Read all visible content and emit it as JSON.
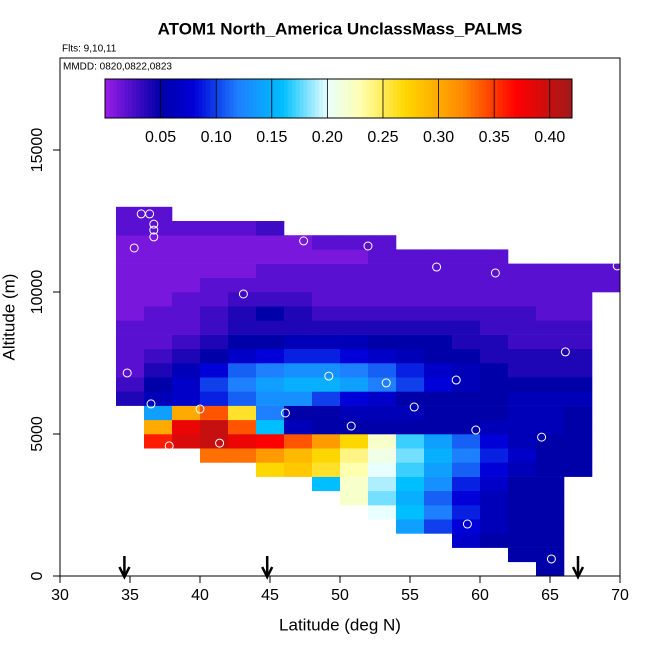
{
  "chart_data": {
    "type": "heatmap",
    "title": "ATOM1 North_America UnclassMass_PALMS",
    "subtitle": "Flts: 9,10,11",
    "annotation": "MMDD: 0820,0822,0823",
    "xlabel": "Latitude (deg N)",
    "ylabel": "Altitude (m)",
    "xlim": [
      30,
      70
    ],
    "ylim": [
      0,
      18240
    ],
    "xticks": [
      30,
      35,
      40,
      45,
      50,
      55,
      60,
      65,
      70
    ],
    "yticks": [
      0,
      5000,
      10000,
      15000
    ],
    "xbins": [
      34,
      36,
      38,
      40,
      42,
      44,
      46,
      48,
      50,
      52,
      54,
      56,
      58,
      60,
      62,
      64,
      66,
      68,
      70
    ],
    "ybins": [
      0,
      500,
      1000,
      1500,
      2000,
      2500,
      3000,
      3500,
      4000,
      4500,
      5000,
      5500,
      6000,
      6500,
      7000,
      7500,
      8000,
      8500,
      9000,
      9500,
      10000,
      10500,
      11000,
      11500,
      12000,
      12500,
      13000
    ],
    "values": [
      [
        null,
        null,
        null,
        null,
        null,
        null,
        null,
        null,
        null,
        null,
        null,
        null,
        null,
        null,
        null,
        0.05,
        null,
        null
      ],
      [
        null,
        null,
        null,
        null,
        null,
        null,
        null,
        null,
        null,
        null,
        null,
        null,
        null,
        null,
        0.05,
        0.05,
        null,
        null
      ],
      [
        null,
        null,
        null,
        null,
        null,
        null,
        null,
        null,
        null,
        null,
        null,
        null,
        0.07,
        0.05,
        0.05,
        0.05,
        null,
        null
      ],
      [
        null,
        null,
        null,
        null,
        null,
        null,
        null,
        null,
        null,
        null,
        0.14,
        0.1,
        0.08,
        0.06,
        0.05,
        0.05,
        null,
        null
      ],
      [
        null,
        null,
        null,
        null,
        null,
        null,
        null,
        null,
        null,
        0.2,
        0.16,
        0.12,
        0.09,
        0.06,
        0.05,
        0.05,
        null,
        null
      ],
      [
        null,
        null,
        null,
        null,
        null,
        null,
        null,
        null,
        0.22,
        0.18,
        0.15,
        0.11,
        0.08,
        0.06,
        0.05,
        0.05,
        null,
        null
      ],
      [
        null,
        null,
        null,
        null,
        null,
        null,
        null,
        0.16,
        0.22,
        0.19,
        0.16,
        0.13,
        0.09,
        0.07,
        0.05,
        0.05,
        null,
        null
      ],
      [
        null,
        null,
        null,
        null,
        null,
        0.27,
        0.28,
        0.26,
        0.23,
        0.2,
        0.17,
        0.14,
        0.11,
        0.08,
        0.06,
        0.05,
        0.05,
        null
      ],
      [
        null,
        null,
        null,
        0.33,
        0.33,
        0.31,
        0.29,
        0.27,
        0.24,
        0.21,
        0.18,
        0.15,
        0.12,
        0.09,
        0.07,
        0.05,
        0.05,
        null
      ],
      [
        null,
        0.36,
        0.39,
        0.4,
        0.38,
        0.37,
        0.34,
        0.31,
        0.27,
        0.22,
        0.17,
        0.14,
        0.11,
        0.08,
        0.06,
        0.05,
        0.05,
        null
      ],
      [
        null,
        0.3,
        0.38,
        0.4,
        0.34,
        0.16,
        0.06,
        0.05,
        0.05,
        0.05,
        0.05,
        0.05,
        0.05,
        0.06,
        0.06,
        0.06,
        0.05,
        null
      ],
      [
        null,
        0.14,
        0.3,
        0.34,
        0.26,
        0.12,
        0.05,
        0.05,
        0.06,
        0.06,
        0.06,
        0.05,
        0.05,
        0.05,
        0.06,
        0.06,
        0.05,
        null
      ],
      [
        0.04,
        0.06,
        0.07,
        0.09,
        0.11,
        0.13,
        0.13,
        0.1,
        0.08,
        0.07,
        0.05,
        0.05,
        0.05,
        0.05,
        0.06,
        0.06,
        0.06,
        null
      ],
      [
        0.03,
        0.05,
        0.07,
        0.1,
        0.12,
        0.14,
        0.15,
        0.15,
        0.14,
        0.12,
        0.1,
        0.08,
        0.06,
        0.05,
        0.05,
        0.05,
        0.05,
        null
      ],
      [
        0.02,
        0.04,
        0.06,
        0.08,
        0.11,
        0.12,
        0.13,
        0.13,
        0.12,
        0.11,
        0.09,
        0.07,
        0.06,
        0.05,
        0.04,
        0.04,
        0.04,
        null
      ],
      [
        0.02,
        0.03,
        0.04,
        0.05,
        0.07,
        0.08,
        0.09,
        0.09,
        0.08,
        0.07,
        0.06,
        0.05,
        0.05,
        0.04,
        0.04,
        0.04,
        0.04,
        null
      ],
      [
        0.02,
        0.02,
        0.03,
        0.04,
        0.05,
        0.05,
        0.06,
        0.06,
        0.06,
        0.05,
        0.05,
        0.05,
        0.04,
        0.04,
        0.03,
        0.03,
        0.03,
        null
      ],
      [
        0.02,
        0.02,
        0.02,
        0.03,
        0.04,
        0.04,
        0.04,
        0.04,
        0.04,
        0.04,
        0.04,
        0.04,
        0.04,
        0.03,
        0.03,
        0.03,
        0.03,
        null
      ],
      [
        0.01,
        0.02,
        0.02,
        0.03,
        0.04,
        0.05,
        0.04,
        0.03,
        0.03,
        0.03,
        0.03,
        0.03,
        0.03,
        0.03,
        0.03,
        0.02,
        0.02,
        null
      ],
      [
        0.01,
        0.01,
        0.02,
        0.02,
        0.03,
        0.03,
        0.03,
        0.02,
        0.02,
        0.02,
        0.02,
        0.02,
        0.02,
        0.02,
        0.02,
        0.02,
        0.02,
        null
      ],
      [
        0.01,
        0.01,
        0.01,
        0.02,
        0.02,
        0.02,
        0.02,
        0.02,
        0.02,
        0.02,
        0.02,
        0.02,
        0.02,
        0.02,
        0.02,
        0.02,
        0.02,
        0.02
      ],
      [
        0.01,
        0.01,
        0.01,
        0.01,
        0.01,
        0.02,
        0.02,
        0.02,
        0.02,
        0.02,
        0.02,
        0.02,
        0.02,
        0.02,
        0.02,
        0.02,
        0.02,
        0.02
      ],
      [
        0.01,
        0.01,
        0.01,
        0.01,
        0.01,
        0.01,
        0.01,
        0.01,
        0.01,
        0.02,
        0.02,
        0.02,
        0.02,
        0.02,
        null,
        null,
        null,
        null
      ],
      [
        0.01,
        0.01,
        0.01,
        0.01,
        0.01,
        0.01,
        0.01,
        0.02,
        0.02,
        0.02,
        null,
        null,
        null,
        null,
        null,
        null,
        null,
        null
      ],
      [
        0.02,
        0.02,
        0.02,
        0.02,
        0.02,
        0.03,
        null,
        null,
        null,
        null,
        null,
        null,
        null,
        null,
        null,
        null,
        null,
        null
      ],
      [
        0.02,
        0.02,
        null,
        null,
        null,
        null,
        null,
        null,
        null,
        null,
        null,
        null,
        null,
        null,
        null,
        null,
        null,
        null
      ]
    ],
    "clim": [
      0,
      0.42
    ],
    "cticks": [
      0.05,
      {
        "value": 0.1,
        "label": "0.10"
      },
      0.15,
      {
        "value": 0.2,
        "label": "0.20"
      },
      0.25,
      {
        "value": 0.3,
        "label": "0.30"
      },
      0.35,
      {
        "value": 0.4,
        "label": "0.40"
      }
    ],
    "color_stops": [
      [
        0,
        "#9a1ee8"
      ],
      [
        0.02,
        "#5a10d0"
      ],
      [
        0.05,
        "#0000a8"
      ],
      [
        0.08,
        "#0000d8"
      ],
      [
        0.12,
        "#1e80ff"
      ],
      [
        0.16,
        "#00bfff"
      ],
      [
        0.2,
        "#e8ffff"
      ],
      [
        0.23,
        "#ffffb0"
      ],
      [
        0.27,
        "#ffd700"
      ],
      [
        0.32,
        "#ff8c00"
      ],
      [
        0.37,
        "#ff0000"
      ],
      [
        0.42,
        "#a01a1a"
      ]
    ],
    "points": {
      "x": [
        35.8,
        36.4,
        36.7,
        36.7,
        36.7,
        35.3,
        47.4,
        52.0,
        43.1,
        56.9,
        61.1,
        69.8,
        66.1,
        34.8,
        49.2,
        53.3,
        58.3,
        36.5,
        40.0,
        46.1,
        55.3,
        50.8,
        59.7,
        64.4,
        37.8,
        41.4,
        59.1,
        65.1
      ],
      "y": [
        12750,
        12750,
        12390,
        12180,
        11940,
        11550,
        11800,
        11620,
        9930,
        10880,
        10670,
        10920,
        7890,
        7150,
        7040,
        6800,
        6900,
        6060,
        5880,
        5740,
        5950,
        5280,
        5140,
        4890,
        4580,
        4680,
        1830,
        600
      ]
    },
    "arrows_x": [
      34.6,
      44.8,
      67.0
    ]
  }
}
